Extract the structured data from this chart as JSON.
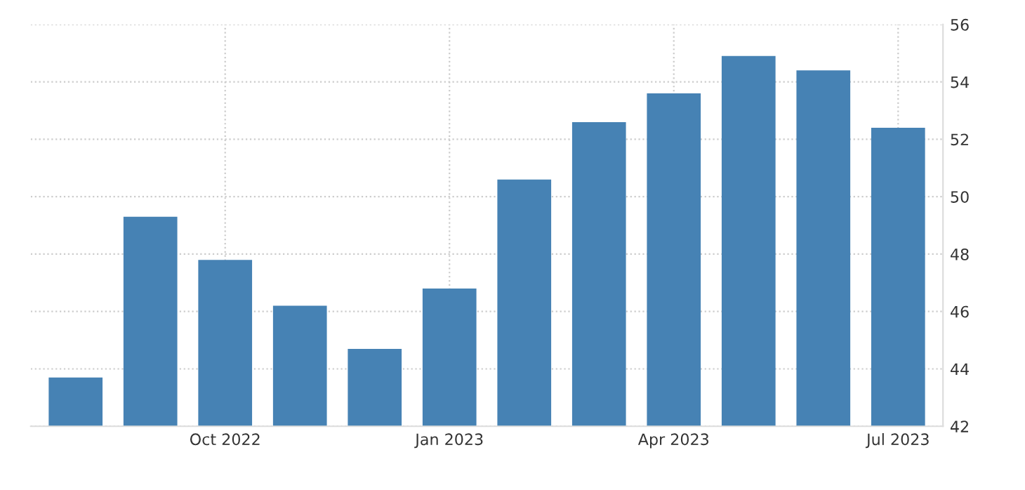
{
  "chart_data": {
    "type": "bar",
    "categories": [
      null,
      null,
      "Oct 2022",
      null,
      null,
      "Jan 2023",
      null,
      null,
      "Apr 2023",
      null,
      null,
      "Jul 2023"
    ],
    "values": [
      43.7,
      49.3,
      47.8,
      46.2,
      44.7,
      46.8,
      50.6,
      52.6,
      53.6,
      54.9,
      54.4,
      52.4
    ],
    "color": "#4682b4",
    "ylim": [
      42,
      56
    ],
    "yticks": [
      42,
      44,
      46,
      48,
      50,
      52,
      54,
      56
    ],
    "grid": true
  }
}
